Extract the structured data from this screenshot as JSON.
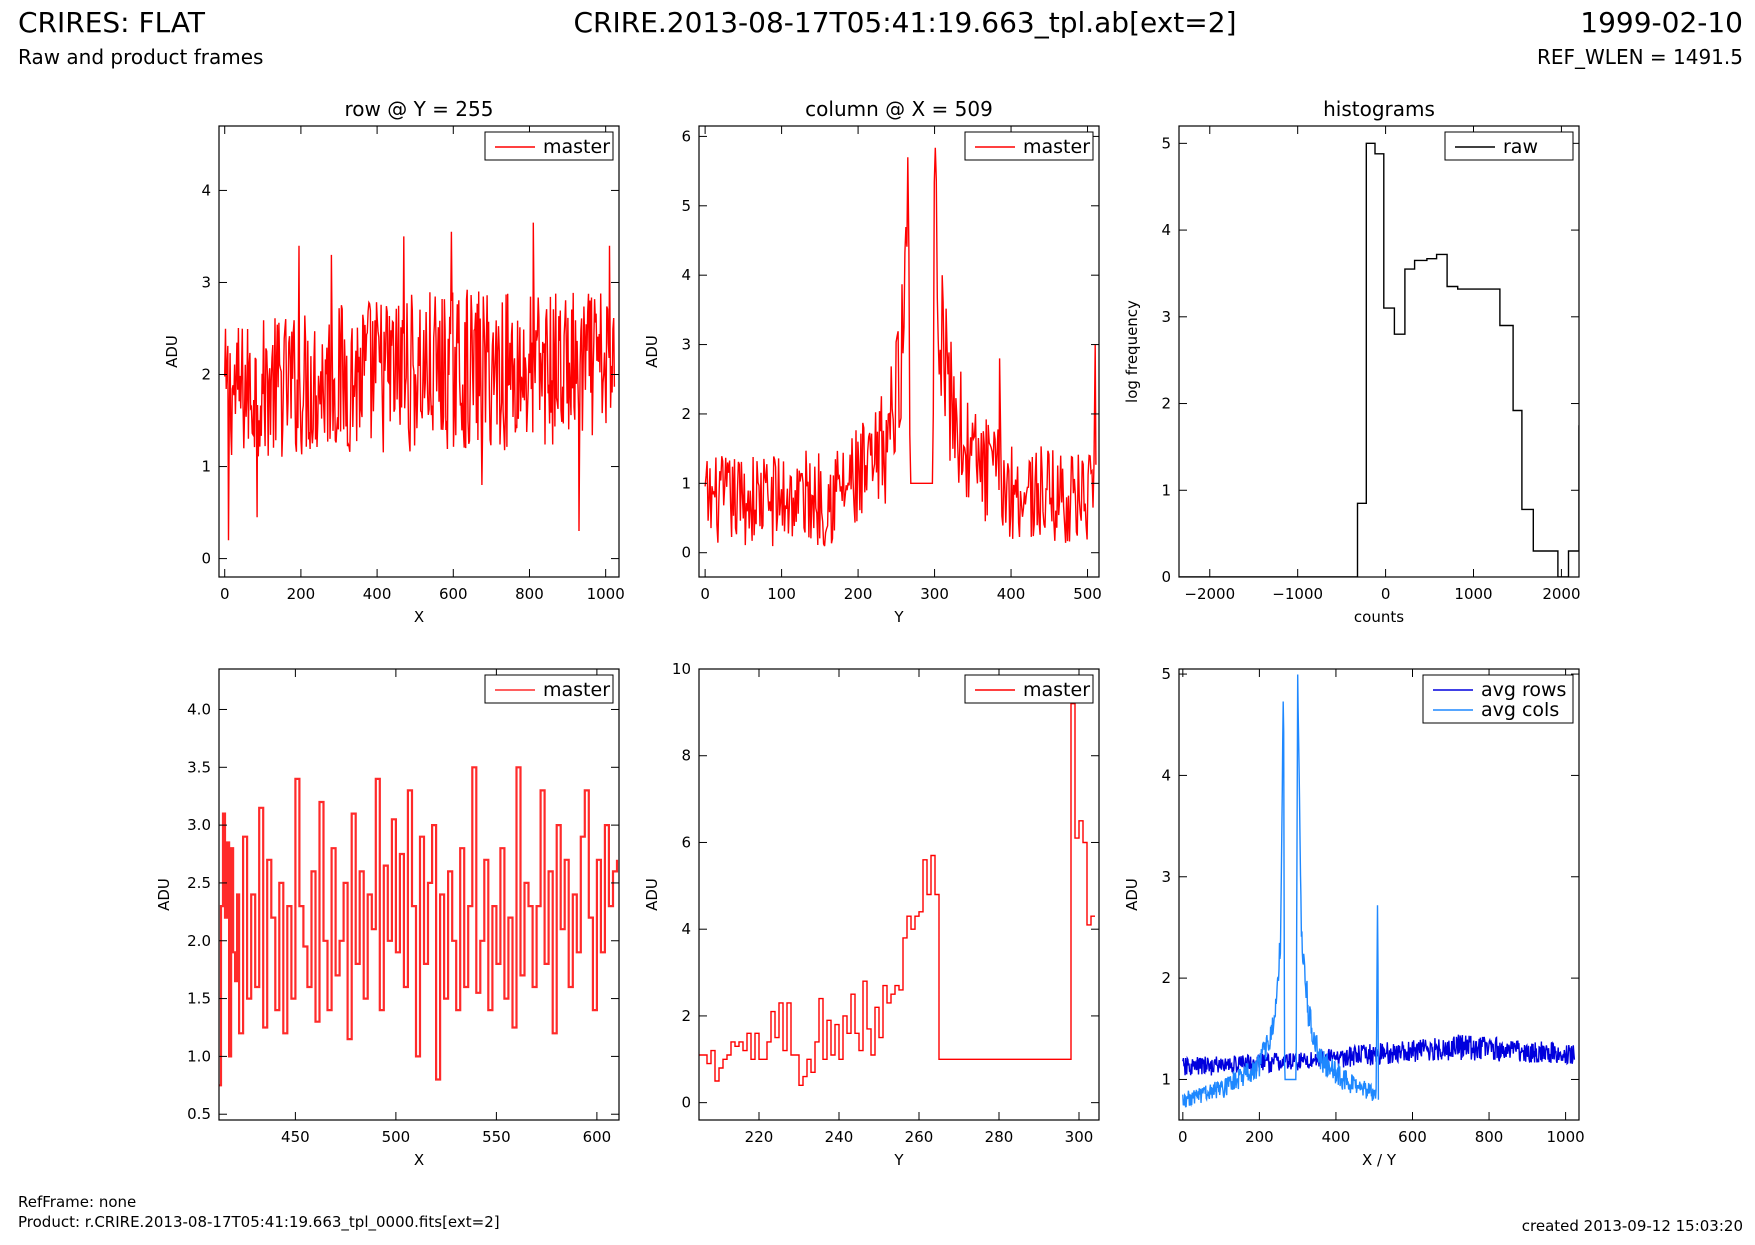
{
  "header": {
    "title": "CRIRES: FLAT",
    "subtitle": "Raw and product frames",
    "center": "CRIRE.2013-08-17T05:41:19.663_tpl.ab[ext=2]",
    "date": "1999-02-10",
    "ref_wlen": "REF_WLEN = 1491.5"
  },
  "footer": {
    "refframe": "RefFrame: none",
    "product": "Product: r.CRIRE.2013-08-17T05:41:19.663_tpl_0000.fits[ext=2]",
    "created": "created 2013-09-12 15:03:20"
  },
  "chart_data": [
    {
      "id": "p1",
      "type": "line",
      "title": "row @ Y = 255",
      "xlabel": "X",
      "ylabel": "ADU",
      "xlim": [
        -15,
        1035
      ],
      "ylim": [
        -0.2,
        4.7
      ],
      "xticks": [
        0,
        200,
        400,
        600,
        800,
        1000
      ],
      "yticks": [
        0,
        1,
        2,
        3,
        4
      ],
      "legend": "top-right",
      "series": [
        {
          "name": "master",
          "color": "#ff0000",
          "style": "noise",
          "x_range": [
            0,
            1023
          ],
          "points": 512,
          "envelope": [
            [
              0,
              1.8,
              0.45
            ],
            [
              200,
              1.9,
              0.5
            ],
            [
              400,
              2.0,
              0.55
            ],
            [
              600,
              2.05,
              0.55
            ],
            [
              800,
              2.05,
              0.55
            ],
            [
              1023,
              2.1,
              0.5
            ]
          ],
          "spikes": [
            [
              10,
              0.2
            ],
            [
              85,
              0.45
            ],
            [
              195,
              3.4
            ],
            [
              280,
              3.3
            ],
            [
              470,
              3.5
            ],
            [
              595,
              3.55
            ],
            [
              675,
              0.8
            ],
            [
              810,
              3.65
            ],
            [
              930,
              0.3
            ],
            [
              1010,
              3.4
            ]
          ]
        }
      ]
    },
    {
      "id": "p2",
      "type": "line",
      "title": "column @ X = 509",
      "xlabel": "Y",
      "ylabel": "ADU",
      "xlim": [
        -8,
        515
      ],
      "ylim": [
        -0.35,
        6.15
      ],
      "xticks": [
        0,
        100,
        200,
        300,
        400,
        500
      ],
      "yticks": [
        0,
        1,
        2,
        3,
        4,
        5,
        6
      ],
      "legend": "top-right",
      "series": [
        {
          "name": "master",
          "color": "#ff0000",
          "style": "noise",
          "x_range": [
            0,
            511
          ],
          "points": 400,
          "envelope": [
            [
              0,
              0.75,
              0.4
            ],
            [
              150,
              0.8,
              0.45
            ],
            [
              220,
              1.1,
              0.55
            ],
            [
              245,
              1.9,
              0.6
            ],
            [
              258,
              3.0,
              0.6
            ],
            [
              266,
              5.3,
              0.4
            ],
            [
              268,
              1.0,
              0.0
            ],
            [
              298,
              1.0,
              0.0
            ],
            [
              300,
              6.1,
              0.1
            ],
            [
              305,
              3.5,
              0.6
            ],
            [
              320,
              2.2,
              0.6
            ],
            [
              345,
              1.4,
              0.5
            ],
            [
              400,
              0.9,
              0.45
            ],
            [
              511,
              0.75,
              0.4
            ]
          ],
          "spikes": [
            [
              265,
              5.7
            ],
            [
              310,
              4.0
            ],
            [
              385,
              2.8
            ],
            [
              510,
              3.0
            ]
          ]
        }
      ]
    },
    {
      "id": "p3",
      "type": "line",
      "title": "histograms",
      "xlabel": "counts",
      "ylabel": "log frequency",
      "xlim": [
        -2350,
        2200
      ],
      "ylim": [
        0,
        5.2
      ],
      "xticks": [
        -2000,
        -1000,
        0,
        1000,
        2000
      ],
      "yticks": [
        0,
        1,
        2,
        3,
        4,
        5
      ],
      "legend": "top-right",
      "series": [
        {
          "name": "raw",
          "color": "#000000",
          "style": "step",
          "x": [
            -2350,
            -350,
            -320,
            -220,
            -120,
            -20,
            100,
            220,
            330,
            470,
            580,
            700,
            820,
            1050,
            1300,
            1450,
            1550,
            1680,
            1820,
            1960,
            2080,
            2200
          ],
          "y": [
            0,
            0,
            0.85,
            5.0,
            4.88,
            3.1,
            2.8,
            3.55,
            3.65,
            3.67,
            3.72,
            3.35,
            3.32,
            3.32,
            2.9,
            1.92,
            0.78,
            0.3,
            0.3,
            0,
            0.3,
            1.75
          ]
        }
      ]
    },
    {
      "id": "p4",
      "type": "line",
      "title": "",
      "xlabel": "X",
      "ylabel": "ADU",
      "xlim": [
        412,
        611
      ],
      "ylim": [
        0.45,
        4.35
      ],
      "xticks": [
        450,
        500,
        550,
        600
      ],
      "yticks": [
        0.5,
        1.0,
        1.5,
        2.0,
        2.5,
        3.0,
        3.5,
        4.0
      ],
      "yticklabels": [
        "0.5",
        "1.0",
        "1.5",
        "2.0",
        "2.5",
        "3.0",
        "3.5",
        "4.0"
      ],
      "legend": "top-right",
      "series": [
        {
          "name": "master",
          "color": "#ff2a2a",
          "style": "step",
          "x": [
            412,
            413,
            414,
            415,
            416,
            417,
            418,
            419,
            420,
            421,
            422,
            424,
            426,
            428,
            430,
            432,
            434,
            436,
            438,
            440,
            442,
            444,
            446,
            448,
            450,
            452,
            454,
            456,
            458,
            460,
            462,
            464,
            466,
            468,
            470,
            472,
            474,
            476,
            478,
            480,
            482,
            484,
            486,
            488,
            490,
            492,
            494,
            496,
            498,
            500,
            502,
            504,
            506,
            508,
            510,
            512,
            514,
            516,
            518,
            520,
            522,
            524,
            526,
            528,
            530,
            532,
            534,
            536,
            538,
            540,
            542,
            544,
            546,
            548,
            550,
            552,
            554,
            556,
            558,
            560,
            562,
            564,
            566,
            568,
            570,
            572,
            574,
            576,
            578,
            580,
            582,
            584,
            586,
            588,
            590,
            592,
            594,
            596,
            598,
            600,
            602,
            604,
            606,
            608,
            610
          ],
          "y": [
            0.75,
            2.3,
            3.1,
            2.2,
            2.85,
            1.0,
            2.8,
            1.9,
            1.65,
            2.4,
            1.2,
            2.9,
            1.5,
            2.4,
            1.6,
            3.15,
            1.25,
            2.7,
            2.2,
            1.4,
            2.5,
            1.2,
            2.3,
            1.5,
            3.4,
            2.3,
            1.95,
            1.6,
            2.6,
            1.3,
            3.2,
            2.0,
            1.4,
            2.8,
            1.7,
            2.0,
            2.5,
            1.15,
            3.1,
            1.8,
            2.6,
            1.5,
            2.4,
            2.1,
            3.4,
            1.4,
            2.65,
            2.0,
            3.05,
            1.9,
            2.75,
            1.6,
            3.3,
            2.3,
            1.0,
            2.9,
            1.8,
            2.5,
            3.0,
            0.8,
            2.4,
            1.5,
            2.6,
            2.0,
            1.4,
            2.8,
            1.6,
            2.3,
            3.5,
            1.55,
            2.0,
            2.7,
            1.4,
            2.3,
            1.8,
            2.8,
            1.5,
            2.2,
            1.25,
            3.5,
            1.7,
            2.5,
            2.3,
            1.6,
            2.3,
            3.3,
            1.8,
            2.6,
            1.2,
            3.0,
            2.1,
            2.7,
            1.6,
            2.4,
            1.9,
            2.9,
            3.3,
            2.2,
            1.4,
            2.7,
            1.9,
            3.0,
            2.3,
            2.6,
            2.7
          ]
        }
      ]
    },
    {
      "id": "p5",
      "type": "line",
      "title": "",
      "xlabel": "Y",
      "ylabel": "ADU",
      "xlim": [
        205,
        305
      ],
      "ylim": [
        -0.4,
        10
      ],
      "xticks": [
        220,
        240,
        260,
        280,
        300
      ],
      "yticks": [
        0,
        2,
        4,
        6,
        8,
        10
      ],
      "legend": "top-right",
      "series": [
        {
          "name": "master",
          "color": "#ff0000",
          "style": "step",
          "x": [
            205,
            207,
            208,
            209,
            210,
            211,
            212,
            213,
            214,
            215,
            216,
            217,
            218,
            219,
            220,
            221,
            222,
            223,
            224,
            225,
            226,
            227,
            228,
            229,
            230,
            231,
            232,
            233,
            234,
            235,
            236,
            237,
            238,
            239,
            240,
            241,
            242,
            243,
            244,
            245,
            246,
            247,
            248,
            249,
            250,
            251,
            252,
            253,
            254,
            255,
            256,
            257,
            258,
            259,
            260,
            261,
            262,
            263,
            264,
            265,
            266,
            267,
            298,
            299,
            300,
            301,
            302,
            303,
            304
          ],
          "y": [
            1.1,
            0.9,
            1.2,
            0.5,
            0.8,
            1.0,
            1.1,
            1.4,
            1.3,
            1.4,
            1.2,
            1.6,
            1.0,
            1.6,
            1.0,
            1.0,
            1.4,
            2.1,
            1.5,
            2.3,
            1.2,
            2.3,
            1.1,
            1.1,
            0.4,
            0.6,
            1.0,
            0.7,
            1.4,
            2.4,
            1.0,
            1.9,
            1.1,
            1.8,
            1.0,
            2.0,
            1.6,
            2.5,
            1.6,
            1.2,
            2.8,
            1.7,
            1.1,
            2.2,
            1.5,
            2.7,
            2.3,
            2.5,
            2.7,
            2.6,
            3.8,
            4.3,
            4.0,
            4.3,
            4.4,
            5.6,
            4.8,
            5.7,
            4.8,
            1.0,
            1.0,
            1.0,
            9.2,
            6.1,
            6.5,
            6.0,
            4.1,
            4.3,
            4.3
          ]
        }
      ]
    },
    {
      "id": "p6",
      "type": "line",
      "title": "",
      "xlabel": "X / Y",
      "ylabel": "ADU",
      "xlim": [
        -10,
        1035
      ],
      "ylim": [
        0.6,
        5.05
      ],
      "xticks": [
        0,
        200,
        400,
        600,
        800,
        1000
      ],
      "yticks": [
        1,
        2,
        3,
        4,
        5
      ],
      "legend": "top-right",
      "series": [
        {
          "name": "avg rows",
          "color": "#0000dd",
          "style": "noise",
          "x_range": [
            0,
            1023
          ],
          "points": 700,
          "envelope": [
            [
              0,
              1.12,
              0.06
            ],
            [
              300,
              1.18,
              0.06
            ],
            [
              600,
              1.28,
              0.07
            ],
            [
              720,
              1.32,
              0.08
            ],
            [
              1023,
              1.25,
              0.06
            ]
          ],
          "spikes": [
            [
              715,
              1.42
            ]
          ]
        },
        {
          "name": "avg cols",
          "color": "#1e88ff",
          "style": "noise",
          "x_range": [
            0,
            511
          ],
          "points": 420,
          "envelope": [
            [
              0,
              0.8,
              0.05
            ],
            [
              100,
              0.9,
              0.06
            ],
            [
              200,
              1.15,
              0.08
            ],
            [
              235,
              1.5,
              0.08
            ],
            [
              255,
              2.3,
              0.1
            ],
            [
              263,
              5.0,
              0.0
            ],
            [
              266,
              1.0,
              0.0
            ],
            [
              296,
              1.0,
              0.0
            ],
            [
              300,
              5.0,
              0.0
            ],
            [
              310,
              2.4,
              0.1
            ],
            [
              330,
              1.6,
              0.1
            ],
            [
              360,
              1.2,
              0.08
            ],
            [
              420,
              1.0,
              0.07
            ],
            [
              505,
              0.85,
              0.05
            ],
            [
              509,
              2.95,
              0.0
            ],
            [
              511,
              0.8,
              0.0
            ]
          ],
          "spikes": []
        }
      ]
    }
  ]
}
